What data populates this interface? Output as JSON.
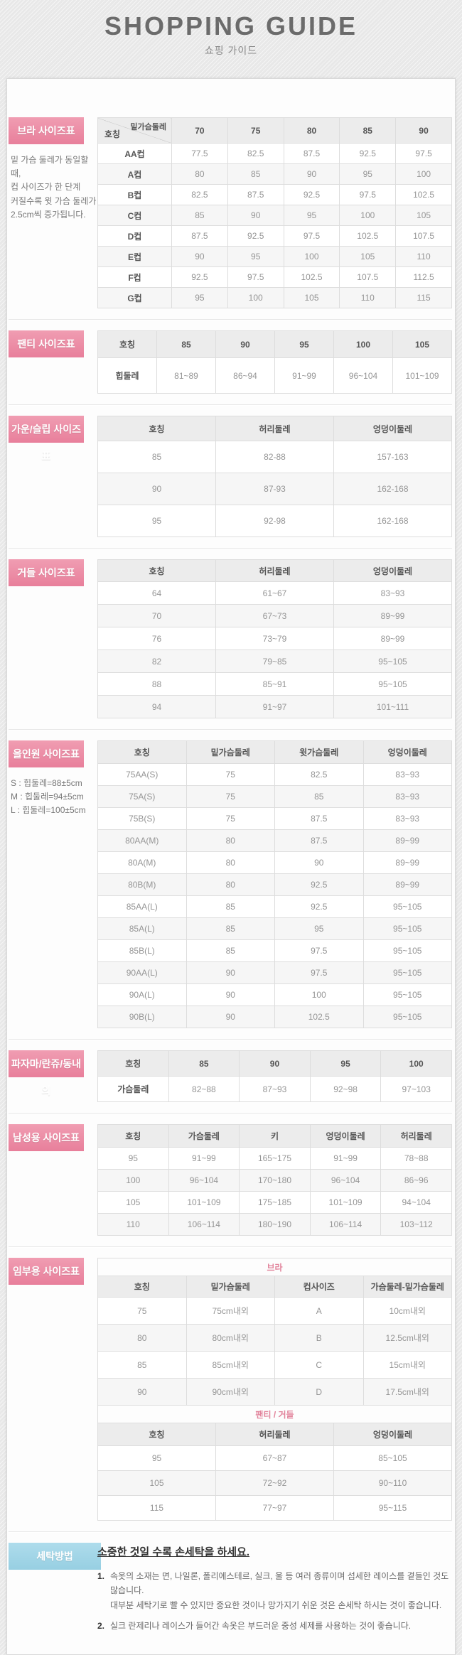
{
  "header": {
    "title": "SHOPPING GUIDE",
    "subtitle": "쇼핑 가이드"
  },
  "colors": {
    "accent_pink": "#ec8aa2",
    "accent_blue": "#a2d5e6",
    "caption_pink": "#e2849c"
  },
  "sections": {
    "bra": {
      "label": "브라 사이즈표",
      "note_lines": [
        "밑 가슴 둘레가 동일할 때,",
        "컵 사이즈가 한 단계",
        "커질수록 윗 가슴 둘레가",
        "2.5cm씩 증가됩니다."
      ],
      "table": {
        "corner": {
          "top": "밑가슴둘레",
          "bottom": "호칭"
        },
        "row_header": true,
        "header": [
          "70",
          "75",
          "80",
          "85",
          "90"
        ],
        "rows": [
          [
            "AA컵",
            "77.5",
            "82.5",
            "87.5",
            "92.5",
            "97.5"
          ],
          [
            "A컵",
            "80",
            "85",
            "90",
            "95",
            "100"
          ],
          [
            "B컵",
            "82.5",
            "87.5",
            "92.5",
            "97.5",
            "102.5"
          ],
          [
            "C컵",
            "85",
            "90",
            "95",
            "100",
            "105"
          ],
          [
            "D컵",
            "87.5",
            "92.5",
            "97.5",
            "102.5",
            "107.5"
          ],
          [
            "E컵",
            "90",
            "95",
            "100",
            "105",
            "110"
          ],
          [
            "F컵",
            "92.5",
            "97.5",
            "102.5",
            "107.5",
            "112.5"
          ],
          [
            "G컵",
            "95",
            "100",
            "105",
            "110",
            "115"
          ]
        ]
      }
    },
    "panty": {
      "label": "팬티 사이즈표",
      "table": {
        "row_header": true,
        "header": [
          "호칭",
          "85",
          "90",
          "95",
          "100",
          "105"
        ],
        "rows": [
          [
            "힙둘레",
            "81~89",
            "86~94",
            "91~99",
            "96~104",
            "101~109"
          ]
        ]
      }
    },
    "gown": {
      "label": "가운/슬립 사이즈표",
      "table": {
        "header": [
          "호칭",
          "허리둘레",
          "엉덩이둘레"
        ],
        "rows": [
          [
            "85",
            "82-88",
            "157-163"
          ],
          [
            "90",
            "87-93",
            "162-168"
          ],
          [
            "95",
            "92-98",
            "162-168"
          ]
        ]
      }
    },
    "girdle": {
      "label": "거들 사이즈표",
      "table": {
        "header": [
          "호칭",
          "허리둘레",
          "엉덩이둘레"
        ],
        "rows": [
          [
            "64",
            "61~67",
            "83~93"
          ],
          [
            "70",
            "67~73",
            "89~99"
          ],
          [
            "76",
            "73~79",
            "89~99"
          ],
          [
            "82",
            "79~85",
            "95~105"
          ],
          [
            "88",
            "85~91",
            "95~105"
          ],
          [
            "94",
            "91~97",
            "101~111"
          ]
        ]
      }
    },
    "allinone": {
      "label": "올인원 사이즈표",
      "note_lines": [
        "S : 힙둘레=88±5cm",
        "M : 힙둘레=94±5cm",
        "L : 힙둘레=100±5cm"
      ],
      "table": {
        "header": [
          "호칭",
          "밑가슴둘레",
          "윗가슴둘레",
          "엉덩이둘레"
        ],
        "rows": [
          [
            "75AA(S)",
            "75",
            "82.5",
            "83~93"
          ],
          [
            "75A(S)",
            "75",
            "85",
            "83~93"
          ],
          [
            "75B(S)",
            "75",
            "87.5",
            "83~93"
          ],
          [
            "80AA(M)",
            "80",
            "87.5",
            "89~99"
          ],
          [
            "80A(M)",
            "80",
            "90",
            "89~99"
          ],
          [
            "80B(M)",
            "80",
            "92.5",
            "89~99"
          ],
          [
            "85AA(L)",
            "85",
            "92.5",
            "95~105"
          ],
          [
            "85A(L)",
            "85",
            "95",
            "95~105"
          ],
          [
            "85B(L)",
            "85",
            "97.5",
            "95~105"
          ],
          [
            "90AA(L)",
            "90",
            "97.5",
            "95~105"
          ],
          [
            "90A(L)",
            "90",
            "100",
            "95~105"
          ],
          [
            "90B(L)",
            "90",
            "102.5",
            "95~105"
          ]
        ]
      }
    },
    "pajama": {
      "label": "파자마/란쥬/동내의",
      "table": {
        "row_header": true,
        "header": [
          "호칭",
          "85",
          "90",
          "95",
          "100"
        ],
        "rows": [
          [
            "가슴둘레",
            "82~88",
            "87~93",
            "92~98",
            "97~103"
          ]
        ]
      }
    },
    "mens": {
      "label": "남성용 사이즈표",
      "table": {
        "header": [
          "호칭",
          "가슴둘레",
          "키",
          "엉덩이둘레",
          "허리둘레"
        ],
        "rows": [
          [
            "95",
            "91~99",
            "165~175",
            "91~99",
            "78~88"
          ],
          [
            "100",
            "96~104",
            "170~180",
            "96~104",
            "86~96"
          ],
          [
            "105",
            "101~109",
            "175~185",
            "101~109",
            "94~104"
          ],
          [
            "110",
            "106~114",
            "180~190",
            "106~114",
            "103~112"
          ]
        ]
      }
    },
    "maternity": {
      "label": "임부용 사이즈표",
      "bra_table": {
        "caption": "브라",
        "header": [
          "호칭",
          "밑가슴둘레",
          "컵사이즈",
          "가슴둘레-밑가슴둘레"
        ],
        "rows": [
          [
            "75",
            "75cm내외",
            "A",
            "10cm내외"
          ],
          [
            "80",
            "80cm내외",
            "B",
            "12.5cm내외"
          ],
          [
            "85",
            "85cm내외",
            "C",
            "15cm내외"
          ],
          [
            "90",
            "90cm내외",
            "D",
            "17.5cm내외"
          ]
        ]
      },
      "panty_table": {
        "caption": "팬티 / 거들",
        "header": [
          "호칭",
          "허리둘레",
          "엉덩이둘레"
        ],
        "rows": [
          [
            "95",
            "67~87",
            "85~105"
          ],
          [
            "105",
            "72~92",
            "90~110"
          ],
          [
            "115",
            "77~97",
            "95~115"
          ]
        ]
      }
    },
    "washing": {
      "label": "세탁방법",
      "title": "소중한 것일 수록 손세탁을 하세요.",
      "items": [
        {
          "num": "1.",
          "lines": [
            "속옷의 소재는 면, 나일론, 폴리에스테르, 실크, 울 등 여러 종류이며 섬세한 레이스를 곁들인 것도 많습니다.",
            "대부분 세탁기로 빨 수 있지만 중요한 것이나 망가지기 쉬운 것은 손세탁 하시는 것이 좋습니다."
          ]
        },
        {
          "num": "2.",
          "lines": [
            "실크 란제리나 레이스가 들어간 속옷은 부드러운 중성 세제를 사용하는 것이 좋습니다."
          ]
        }
      ]
    }
  }
}
